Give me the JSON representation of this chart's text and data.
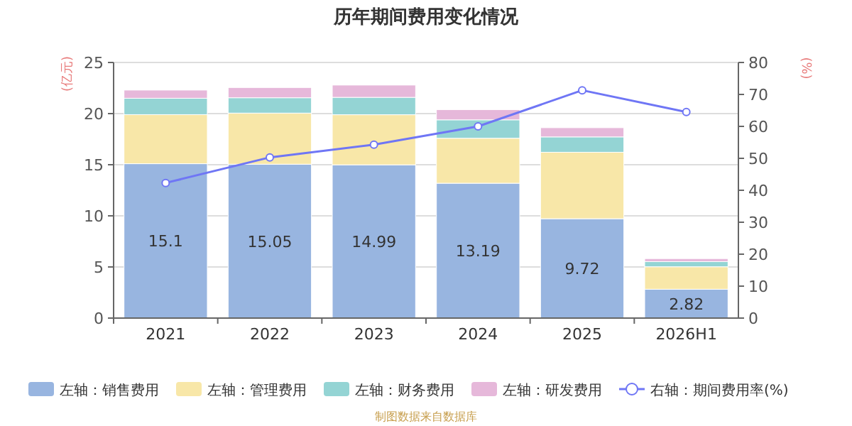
{
  "chart_data": {
    "type": "bar",
    "title": "历年期间费用变化情况",
    "ylabel": "(亿元)",
    "y2label": "(%)",
    "categories": [
      "2021",
      "2022",
      "2023",
      "2024",
      "2025",
      "2026H1"
    ],
    "stacked": true,
    "series": [
      {
        "name": "左轴：销售费用",
        "color": "#98b5e0",
        "values": [
          15.1,
          15.05,
          14.99,
          13.19,
          9.72,
          2.82
        ],
        "value_labels": [
          "15.1",
          "15.05",
          "14.99",
          "13.19",
          "9.72",
          "2.82"
        ]
      },
      {
        "name": "左轴：管理费用",
        "color": "#f8e7a8",
        "values": [
          4.8,
          5.0,
          4.9,
          4.4,
          6.5,
          2.2
        ]
      },
      {
        "name": "左轴：财务费用",
        "color": "#94d4d4",
        "values": [
          1.6,
          1.5,
          1.7,
          1.8,
          1.5,
          0.5
        ]
      },
      {
        "name": "左轴：研发费用",
        "color": "#e6b8da",
        "values": [
          0.8,
          1.0,
          1.2,
          1.0,
          0.9,
          0.3
        ]
      },
      {
        "name": "右轴：期间费用率(%)",
        "type": "line",
        "axis": "y2",
        "color": "#6f76f5",
        "marker": "circle",
        "values": [
          42.3,
          50.3,
          54.3,
          60.0,
          71.3,
          64.5
        ]
      }
    ],
    "ylim": [
      0,
      25
    ],
    "yticks": [
      0,
      5,
      10,
      15,
      20,
      25
    ],
    "y2lim": [
      0,
      80
    ],
    "y2ticks": [
      0,
      10,
      20,
      30,
      40,
      50,
      60,
      70,
      80
    ],
    "grid": "y",
    "legend": "bottom",
    "annotations": [
      "制图数据来自数据库"
    ]
  }
}
